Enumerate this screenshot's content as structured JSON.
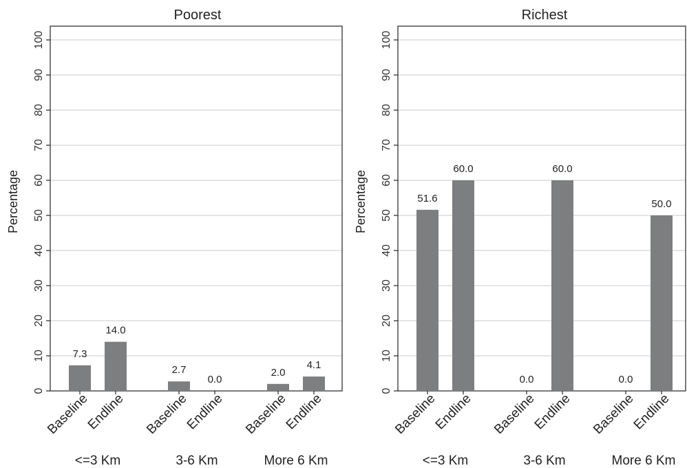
{
  "chart_data": [
    {
      "type": "bar",
      "title": "Poorest",
      "ylabel": "Percentage",
      "ylim": [
        0,
        100
      ],
      "yticks": [
        0,
        10,
        20,
        30,
        40,
        50,
        60,
        70,
        80,
        90,
        100
      ],
      "grid": true,
      "groups": [
        "<=3 Km",
        "3-6 Km",
        "More 6 Km"
      ],
      "categories": [
        "Baseline",
        "Endline"
      ],
      "values": [
        [
          7.3,
          14.0
        ],
        [
          2.7,
          0.0
        ],
        [
          2.0,
          4.1
        ]
      ],
      "labels": [
        [
          "7.3",
          "14.0"
        ],
        [
          "2.7",
          "0.0"
        ],
        [
          "2.0",
          "4.1"
        ]
      ],
      "bar_color": "#7d7e80"
    },
    {
      "type": "bar",
      "title": "Richest",
      "ylabel": "Percentage",
      "ylim": [
        0,
        100
      ],
      "yticks": [
        0,
        10,
        20,
        30,
        40,
        50,
        60,
        70,
        80,
        90,
        100
      ],
      "grid": true,
      "groups": [
        "<=3 Km",
        "3-6 Km",
        "More 6 Km"
      ],
      "categories": [
        "Baseline",
        "Endline"
      ],
      "values": [
        [
          51.6,
          60.0
        ],
        [
          0.0,
          60.0
        ],
        [
          0.0,
          50.0
        ]
      ],
      "labels": [
        [
          "51.6",
          "60.0"
        ],
        [
          "0.0",
          "60.0"
        ],
        [
          "0.0",
          "50.0"
        ]
      ],
      "bar_color": "#7d7e80"
    }
  ]
}
